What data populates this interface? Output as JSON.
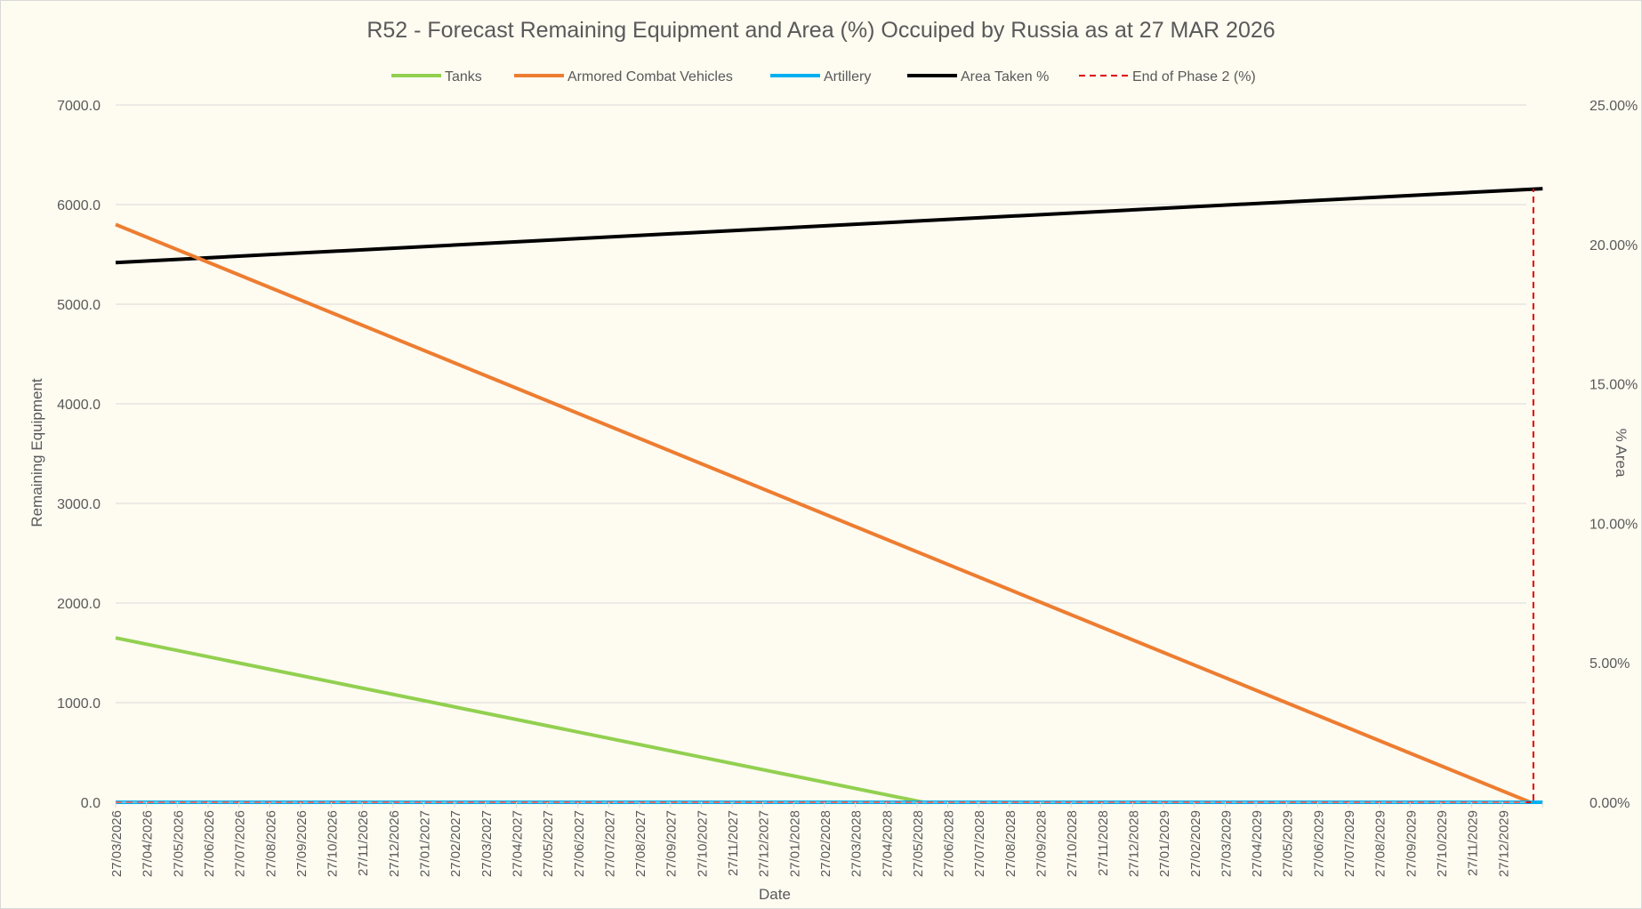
{
  "colors": {
    "background": "#fefbf1",
    "grid": "#d9d9d9",
    "text": "#595959",
    "tanks": "#92d050",
    "acv": "#ed7d31",
    "artillery": "#00b0f0",
    "area": "#000000",
    "phase2": "#e00000"
  },
  "chart_data": {
    "type": "line",
    "title": "R52 - Forecast Remaining Equipment and Area (%) Occuiped by Russia as at 27 MAR 2026",
    "xlabel": "Date",
    "ylabel": "Remaining Equipment",
    "y2label": "% Area",
    "legend_position": "top",
    "ylim": [
      0,
      7000
    ],
    "y_ticks": [
      "0.0",
      "1000.0",
      "2000.0",
      "3000.0",
      "4000.0",
      "5000.0",
      "6000.0",
      "7000.0"
    ],
    "y2lim": [
      0,
      25
    ],
    "y2_ticks": [
      "0.00%",
      "5.00%",
      "10.00%",
      "15.00%",
      "20.00%",
      "25.00%"
    ],
    "categories": [
      "27/03/2026",
      "27/04/2026",
      "27/05/2026",
      "27/06/2026",
      "27/07/2026",
      "27/08/2026",
      "27/09/2026",
      "27/10/2026",
      "27/11/2026",
      "27/12/2026",
      "27/01/2027",
      "27/02/2027",
      "27/03/2027",
      "27/04/2027",
      "27/05/2027",
      "27/06/2027",
      "27/07/2027",
      "27/08/2027",
      "27/09/2027",
      "27/10/2027",
      "27/11/2027",
      "27/12/2027",
      "27/01/2028",
      "27/02/2028",
      "27/03/2028",
      "27/04/2028",
      "27/05/2028",
      "27/06/2028",
      "27/07/2028",
      "27/08/2028",
      "27/09/2028",
      "27/10/2028",
      "27/11/2028",
      "27/12/2028",
      "27/01/2029",
      "27/02/2029",
      "27/03/2029",
      "27/04/2029",
      "27/05/2029",
      "27/06/2029",
      "27/07/2029",
      "27/08/2029",
      "27/09/2029",
      "27/10/2029",
      "27/11/2029",
      "27/12/2029"
    ],
    "x_end_index": 46.3,
    "series": [
      {
        "name": "Tanks",
        "axis": "left",
        "style": "solid",
        "color_key": "tanks",
        "points": [
          [
            0,
            1650
          ],
          [
            26.2,
            0
          ],
          [
            46.3,
            0
          ]
        ]
      },
      {
        "name": "Armored Combat Vehicles",
        "axis": "left",
        "style": "solid",
        "color_key": "acv",
        "points": [
          [
            0,
            5800
          ],
          [
            45.9,
            0
          ]
        ]
      },
      {
        "name": "Artillery",
        "axis": "left",
        "style": "solid",
        "color_key": "artillery",
        "points": [
          [
            0,
            0
          ],
          [
            46.3,
            0
          ]
        ]
      },
      {
        "name": "Area Taken %",
        "axis": "right",
        "style": "solid",
        "color_key": "area",
        "points": [
          [
            0,
            19.35
          ],
          [
            46.3,
            22.0
          ]
        ]
      },
      {
        "name": "End of Phase 2 (%)",
        "axis": "right",
        "style": "dashed",
        "color_key": "phase2",
        "points": [
          [
            0,
            0
          ],
          [
            46.0,
            0
          ],
          [
            46.0,
            22.0
          ]
        ]
      }
    ]
  }
}
